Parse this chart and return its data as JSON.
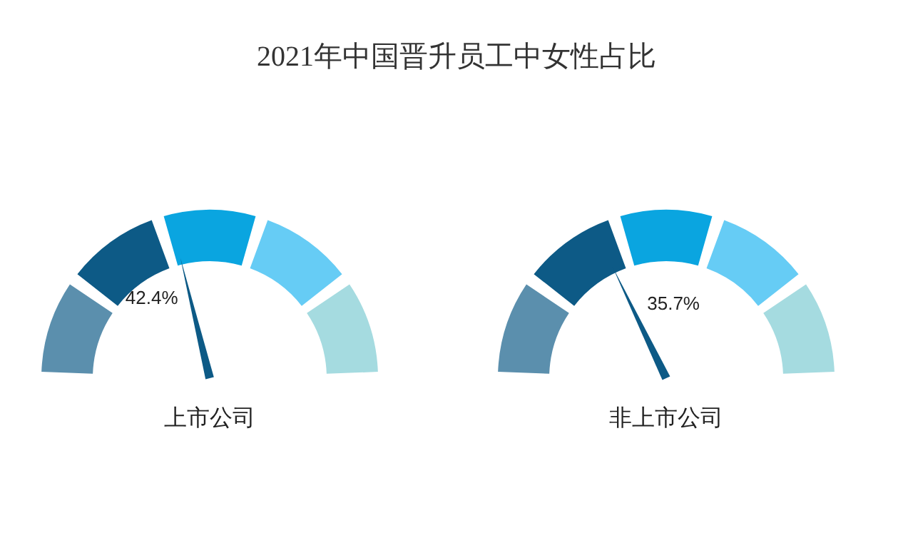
{
  "chart_data": [
    {
      "type": "other",
      "title": "2021年中国晋升员工中女性占比",
      "xlabel": "上市公司",
      "values": [
        42.4
      ],
      "value_labels": [
        "42.4%"
      ],
      "color": "#0d5a86"
    },
    {
      "type": "other",
      "xlabel": "非上市公司",
      "values": [
        35.7
      ],
      "value_labels": [
        "35.7%"
      ],
      "color": "#0d5a86"
    }
  ]
}
